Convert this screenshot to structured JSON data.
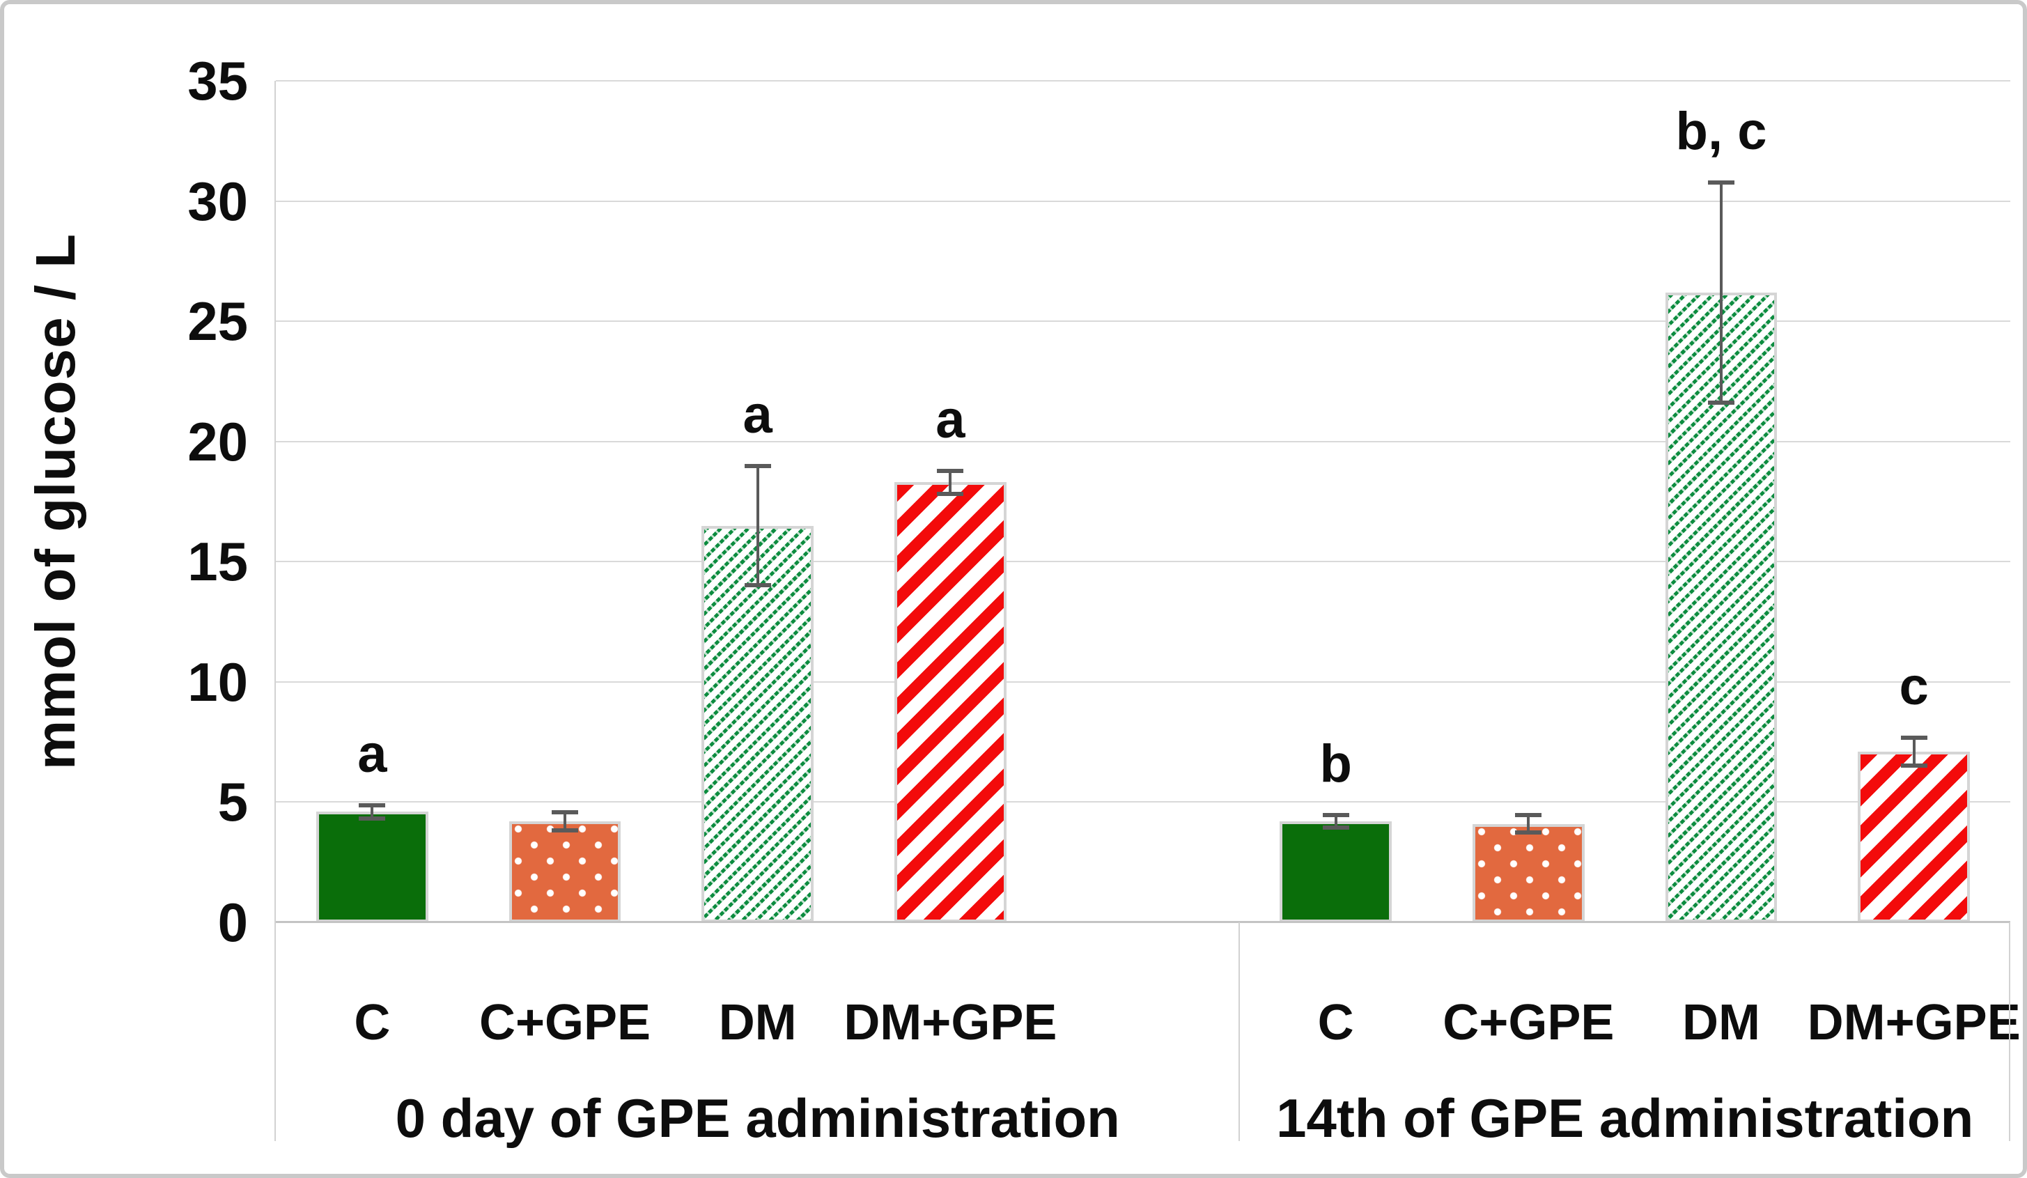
{
  "chart_data": {
    "type": "bar",
    "title": "",
    "ylabel": "mmol of glucose / L",
    "xlabel": "",
    "ylim": [
      0,
      35
    ],
    "yticks": [
      0,
      5,
      10,
      15,
      20,
      25,
      30,
      35
    ],
    "grid": true,
    "legend_position": "none",
    "groups": [
      {
        "label": "0 day of GPE administration",
        "categories": [
          "C",
          "C+GPE",
          "DM",
          "DM+GPE"
        ],
        "values": [
          4.6,
          4.2,
          16.5,
          18.3
        ],
        "errors": [
          0.3,
          0.4,
          2.5,
          0.5
        ],
        "annotations": [
          "a",
          "",
          "a",
          "a"
        ],
        "blank_slots_after": 1
      },
      {
        "label": "14th of GPE administration",
        "categories": [
          "C",
          "C+GPE",
          "DM",
          "DM+GPE"
        ],
        "values": [
          4.2,
          4.1,
          26.2,
          7.1
        ],
        "errors": [
          0.3,
          0.4,
          4.6,
          0.6
        ],
        "annotations": [
          "b",
          "",
          "b, c",
          "c"
        ],
        "blank_slots_after": 0
      }
    ],
    "bar_styles": [
      {
        "category": "C",
        "pattern": "solid",
        "color": "#0a6e0a"
      },
      {
        "category": "C+GPE",
        "pattern": "white-dots",
        "color": "#e2693f"
      },
      {
        "category": "DM",
        "pattern": "green-diagonal-hatch",
        "color": "#0c8c3f"
      },
      {
        "category": "DM+GPE",
        "pattern": "red-diagonal-stripes",
        "color": "#f30b0b"
      }
    ],
    "colors": {
      "bar_border": "#d5d5d5",
      "gridline": "#d9d9d9",
      "axis_line": "#c4c4c4",
      "error_bar": "#5a5a5a",
      "text": "#0d0d0d",
      "frame_border": "#c9c9c9"
    }
  }
}
